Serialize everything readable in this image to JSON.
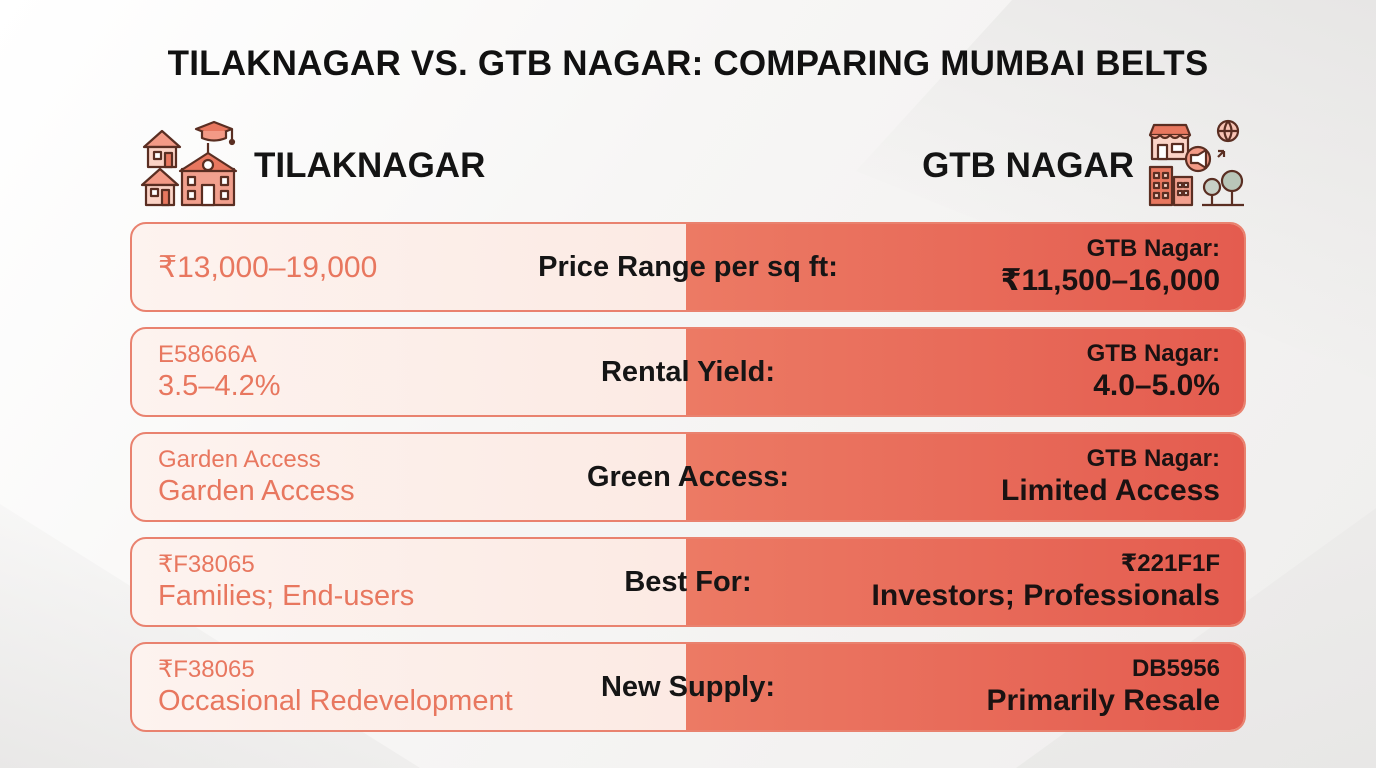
{
  "title": "TILAKNAGAR VS. GTB NAGAR: COMPARING MUMBAI BELTS",
  "left_heading": {
    "name": "TILAKNAGAR",
    "icon": "houses-school-icon"
  },
  "right_heading": {
    "name": "GTB NAGAR",
    "icon": "shop-city-trees-icon"
  },
  "colors": {
    "accent": "#E45C4F",
    "left_text": "#E8775F",
    "border": "#E9826F"
  },
  "rows": [
    {
      "label": "Price Range per sq ft:",
      "left_line1": "",
      "left_line2": "₹13,000–19,000",
      "right_line1": "GTB Nagar:",
      "right_line2": "₹11,500–16,000"
    },
    {
      "label": "Rental Yield:",
      "left_line1": "E58666A",
      "left_line2": "3.5–4.2%",
      "right_line1": "GTB Nagar:",
      "right_line2": "4.0–5.0%"
    },
    {
      "label": "Green Access:",
      "left_line1": "Garden Access",
      "left_line2": "Garden Access",
      "right_line1": "GTB Nagar:",
      "right_line2": "Limited Access"
    },
    {
      "label": "Best For:",
      "left_line1": "₹F38065",
      "left_line2": "Families; End-users",
      "right_line1": "₹221F1F",
      "right_line2": "Investors; Professionals"
    },
    {
      "label": "New Supply:",
      "left_line1": "₹F38065",
      "left_line2": "Occasional Redevelopment",
      "right_line1": "DB5956",
      "right_line2": "Primarily Resale"
    }
  ]
}
